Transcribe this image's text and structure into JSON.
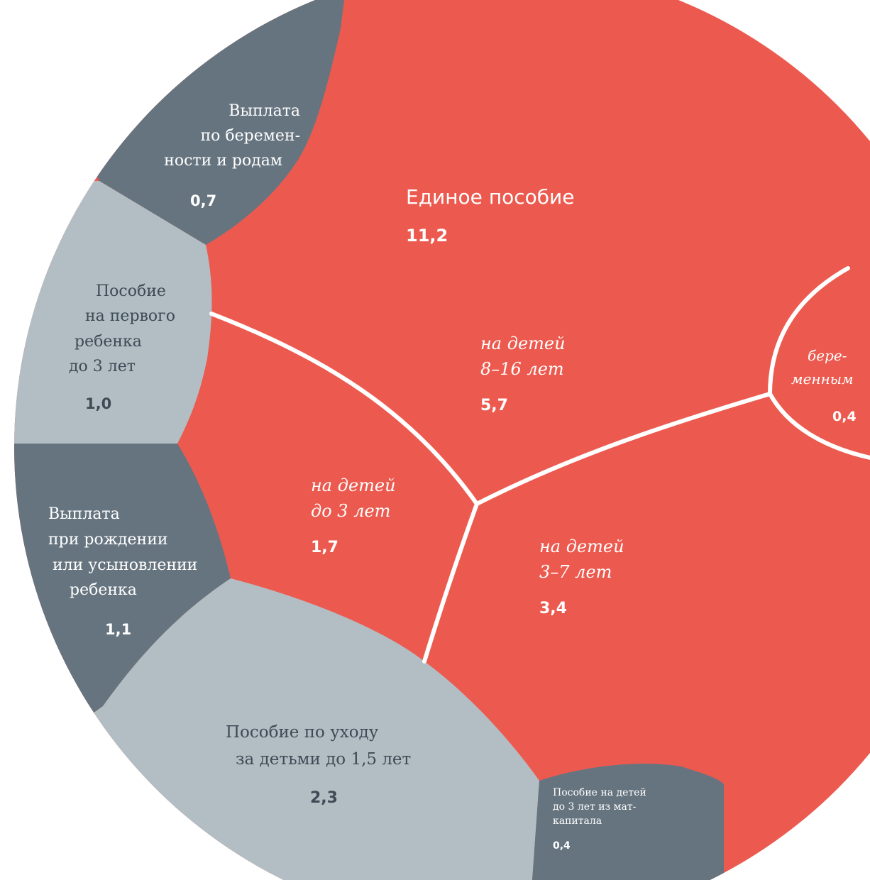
{
  "colors": {
    "red": "#EC5A4F",
    "dark_gray": "#66747F",
    "light_gray": "#B2BEC4",
    "text_dark": "#3F4A55",
    "text_light": "#FFFFFF"
  },
  "chart_data": {
    "type": "voronoi-treemap",
    "unit": "",
    "groups": [
      {
        "name": "Единое пособие",
        "value": "11,2",
        "color": "red",
        "children": [
          {
            "name": "на детей 8–16 лет",
            "value": "5,7"
          },
          {
            "name": "на детей 3–7 лет",
            "value": "3,4"
          },
          {
            "name": "на детей до 3 лет",
            "value": "1,7"
          },
          {
            "name": "беременным",
            "value": "0,4"
          }
        ]
      },
      {
        "name": "Пособие по уходу за детьми до 1,5 лет",
        "value": "2,3",
        "color": "light_gray"
      },
      {
        "name": "Выплата при рождении или усыновлении ребенка",
        "value": "1,1",
        "color": "dark_gray"
      },
      {
        "name": "Пособие на первого ребенка до 3 лет",
        "value": "1,0",
        "color": "light_gray"
      },
      {
        "name": "Выплата по беременности и родам",
        "value": "0,7",
        "color": "dark_gray"
      },
      {
        "name": "Пособие на детей до 3 лет из маткапитала",
        "value": "0,4",
        "color": "dark_gray"
      }
    ]
  },
  "labels": {
    "edinoe_title": "Единое пособие",
    "edinoe_value": "11,2",
    "c816_l1": "на детей",
    "c816_l2": "8–16 лет",
    "c816_value": "5,7",
    "c37_l1": "на детей",
    "c37_l2": "3–7 лет",
    "c37_value": "3,4",
    "c03_l1": "на детей",
    "c03_l2": "до 3 лет",
    "c03_value": "1,7",
    "preg_l1": "бере-",
    "preg_l2": "менным",
    "preg_value": "0,4",
    "uhod_l1": "Пособие по уходу",
    "uhod_l2": "за детьми до 1,5 лет",
    "uhod_value": "2,3",
    "rozhd_l1": "Выплата",
    "rozhd_l2": "при рождении",
    "rozhd_l3": "или усыновлении",
    "rozhd_l4": "ребенка",
    "rozhd_value": "1,1",
    "perv_l1": "Пособие",
    "perv_l2": "на первого",
    "perv_l3": "ребенка",
    "perv_l4": "до 3 лет",
    "perv_value": "1,0",
    "bir_l1": "Выплата",
    "bir_l2": "по беремен-",
    "bir_l3": "ности и родам",
    "bir_value": "0,7",
    "mat_l1": "Пособие на детей",
    "mat_l2": "до 3 лет из мат-",
    "mat_l3": "капитала",
    "mat_value": "0,4"
  }
}
